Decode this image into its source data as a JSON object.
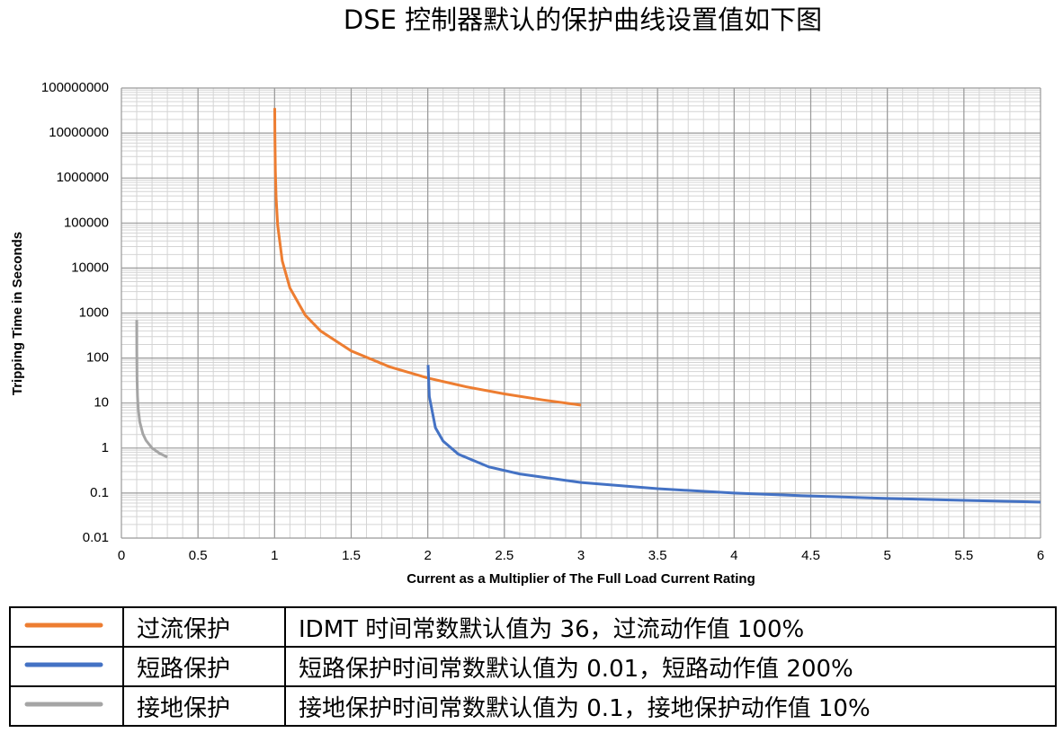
{
  "chart_data": {
    "type": "line",
    "title": "DSE 控制器默认的保护曲线设置值如下图",
    "x_label": "Current as a Multiplier of The Full Load Current Rating",
    "y_label": "Tripping Time in Seconds",
    "xlim": [
      0,
      6
    ],
    "xticks": [
      0,
      0.5,
      1,
      1.5,
      2,
      2.5,
      3,
      3.5,
      4,
      4.5,
      5,
      5.5,
      6
    ],
    "ylim": [
      0.01,
      100000000
    ],
    "yticks": [
      0.01,
      0.1,
      1,
      10,
      100,
      1000,
      10000,
      100000,
      1000000,
      10000000,
      100000000
    ],
    "y_scale": "log",
    "grid": true,
    "series": [
      {
        "name": "过流保护",
        "description": "IDMT 时间常数默认值为 36，过流动作值 100%",
        "color": "#ed7d31",
        "x": [
          1.001,
          1.002,
          1.005,
          1.01,
          1.02,
          1.05,
          1.1,
          1.2,
          1.3,
          1.5,
          1.75,
          2,
          2.25,
          2.5,
          2.75,
          3
        ],
        "values": [
          36000000,
          9000000,
          1440000,
          360000,
          90000,
          14400,
          3600,
          900,
          400,
          144,
          64,
          36,
          23.04,
          16,
          11.76,
          9
        ]
      },
      {
        "name": "短路保护",
        "description": "短路保护时间常数默认值为 0.01，短路动作值 200%",
        "color": "#4472c4",
        "x": [
          2.002,
          2.01,
          2.05,
          2.1,
          2.2,
          2.4,
          2.6,
          3,
          3.5,
          4,
          4.5,
          5,
          5.5,
          6
        ],
        "values": [
          70,
          14,
          2.83,
          1.43,
          0.73,
          0.38,
          0.266,
          0.172,
          0.125,
          0.1,
          0.086,
          0.076,
          0.069,
          0.063
        ]
      },
      {
        "name": "接地保护",
        "description": "接地保护时间常数默认值为 0.1，接地保护动作值 10%",
        "color": "#a5a5a5",
        "x": [
          0.1001,
          0.1005,
          0.102,
          0.105,
          0.11,
          0.12,
          0.14,
          0.16,
          0.2,
          0.25,
          0.3
        ],
        "values": [
          700,
          140,
          35.4,
          14.3,
          7.3,
          3.8,
          2.08,
          1.49,
          1,
          0.76,
          0.63
        ]
      }
    ]
  }
}
